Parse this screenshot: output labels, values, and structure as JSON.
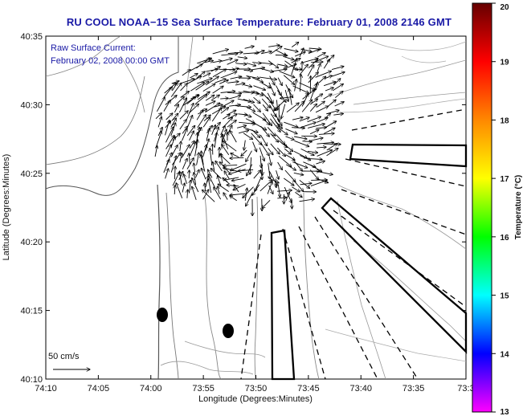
{
  "title": "RU COOL  NOAA−15  Sea Surface Temperature:  February 01, 2008 2146 GMT",
  "annotation": {
    "line1": "Raw Surface Current:",
    "line2": "February 02, 2008 00:00 GMT"
  },
  "scale_label": "50 cm/s",
  "x_axis": {
    "label": "Longitude (Degrees:Minutes)",
    "ticks": [
      "74:10",
      "74:05",
      "74:00",
      "73:55",
      "73:50",
      "73:45",
      "73:40",
      "73:35",
      "73:3"
    ]
  },
  "y_axis": {
    "label": "Latitude (Degrees:Minutes)",
    "ticks": [
      "40:10",
      "40:15",
      "40:20",
      "40:25",
      "40:30",
      "40:35"
    ]
  },
  "colorbar": {
    "label": "Temperature (°C)",
    "ticks": [
      "13",
      "14",
      "15",
      "16",
      "17",
      "18",
      "19",
      "20"
    ],
    "colors": [
      "#ff00ff",
      "#0000ff",
      "#00ffff",
      "#00ff00",
      "#ffff00",
      "#ff8800",
      "#ff0000",
      "#660000"
    ]
  }
}
